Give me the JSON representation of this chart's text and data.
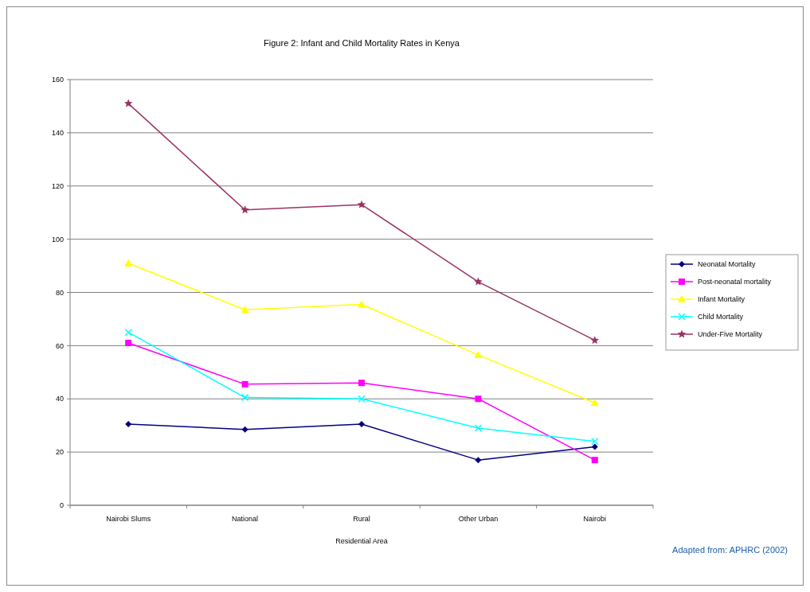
{
  "chart_data": {
    "type": "line",
    "title": "Figure 2: Infant and Child Mortality Rates in Kenya",
    "xlabel": "Residential Area",
    "categories": [
      "Nairobi Slums",
      "National",
      "Rural",
      "Other Urban",
      "Nairobi"
    ],
    "series": [
      {
        "name": "Neonatal Mortality",
        "color": "#000080",
        "marker": "diamond",
        "values": [
          30.5,
          28.5,
          30.5,
          17,
          22
        ]
      },
      {
        "name": "Post-neonatal mortality",
        "color": "#ff00ff",
        "marker": "square",
        "values": [
          61,
          45.5,
          46,
          40,
          17
        ]
      },
      {
        "name": "Infant Mortality",
        "color": "#ffff00",
        "marker": "triangle",
        "values": [
          91,
          73.5,
          75.5,
          56.5,
          38.5
        ]
      },
      {
        "name": "Child Mortality",
        "color": "#00ffff",
        "marker": "cross",
        "values": [
          65,
          40.5,
          40,
          29,
          24
        ]
      },
      {
        "name": "Under-Five Mortality",
        "color": "#993366",
        "marker": "star",
        "values": [
          151,
          111,
          113,
          84,
          62
        ]
      }
    ],
    "ylim": [
      0,
      160
    ],
    "yticks": [
      0,
      20,
      40,
      60,
      80,
      100,
      120,
      140,
      160
    ],
    "grid": "y",
    "legend": "right",
    "annotations": [
      "Adapted from: APHRC (2002)"
    ]
  }
}
